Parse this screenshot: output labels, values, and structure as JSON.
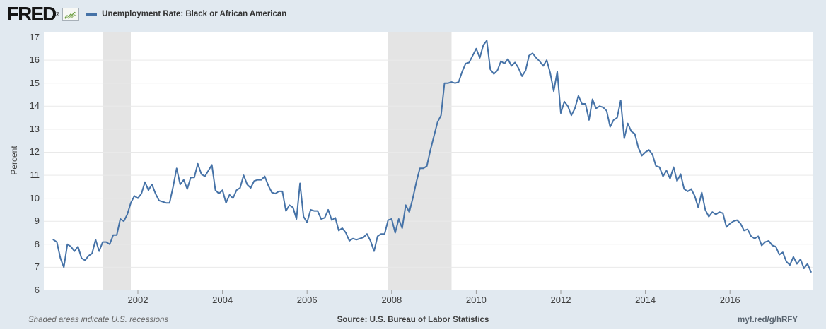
{
  "header": {
    "logo": "FRED",
    "registered_mark": "®",
    "legend_label": "Unemployment Rate: Black or African American"
  },
  "colors": {
    "background": "#e1e9f0",
    "plot_background": "#ffffff",
    "line": "#4572a7",
    "recession_band": "#e4e4e4",
    "gridline": "#e9e9e9",
    "axis": "#999999",
    "icon_green": "#6c9e3f"
  },
  "footer": {
    "note": "Shaded areas indicate U.S. recessions",
    "source": "Source: U.S. Bureau of Labor Statistics",
    "link": "myf.red/g/hRFY"
  },
  "chart_data": {
    "type": "line",
    "title": "Unemployment Rate: Black or African American",
    "ylabel": "Percent",
    "xlabel": "",
    "ylim": [
      6,
      17
    ],
    "y_ticks": [
      6,
      7,
      8,
      9,
      10,
      11,
      12,
      13,
      14,
      15,
      16,
      17
    ],
    "x_ticks": [
      2002,
      2004,
      2006,
      2008,
      2010,
      2012,
      2014,
      2016
    ],
    "grid": "horizontal-only",
    "legend_position": "top-left-header",
    "frequency": "monthly",
    "recessions": [
      {
        "start": 2001.167,
        "end": 2001.833
      },
      {
        "start": 2007.917,
        "end": 2009.417
      }
    ],
    "series": [
      {
        "name": "Unemployment Rate: Black or African American",
        "color": "#4572a7",
        "monthly": [
          {
            "year": 2000,
            "values": [
              8.2,
              8.1,
              7.4,
              7.0,
              8.0,
              7.9,
              7.7,
              7.9,
              7.4,
              7.3,
              7.5,
              7.6
            ]
          },
          {
            "year": 2001,
            "values": [
              8.2,
              7.7,
              8.1,
              8.1,
              8.0,
              8.4,
              8.4,
              9.1,
              9.0,
              9.3,
              9.8,
              10.1
            ]
          },
          {
            "year": 2002,
            "values": [
              10.0,
              10.2,
              10.7,
              10.35,
              10.6,
              10.2,
              9.9,
              9.85,
              9.8,
              9.8,
              10.5,
              11.3
            ]
          },
          {
            "year": 2003,
            "values": [
              10.6,
              10.8,
              10.4,
              10.9,
              10.9,
              11.5,
              11.05,
              10.95,
              11.2,
              11.45,
              10.35,
              10.2
            ]
          },
          {
            "year": 2004,
            "values": [
              10.35,
              9.8,
              10.15,
              10.0,
              10.35,
              10.45,
              11.0,
              10.6,
              10.45,
              10.75,
              10.8,
              10.8
            ]
          },
          {
            "year": 2005,
            "values": [
              10.95,
              10.55,
              10.25,
              10.2,
              10.3,
              10.3,
              9.45,
              9.7,
              9.6,
              9.1,
              10.65,
              9.2
            ]
          },
          {
            "year": 2006,
            "values": [
              8.95,
              9.5,
              9.45,
              9.45,
              9.1,
              9.15,
              9.5,
              9.05,
              9.15,
              8.6,
              8.7,
              8.5
            ]
          },
          {
            "year": 2007,
            "values": [
              8.15,
              8.25,
              8.2,
              8.25,
              8.3,
              8.45,
              8.15,
              7.7,
              8.35,
              8.45,
              8.45,
              9.05
            ]
          },
          {
            "year": 2008,
            "values": [
              9.1,
              8.5,
              9.1,
              8.7,
              9.7,
              9.4,
              10.0,
              10.7,
              11.3,
              11.3,
              11.4,
              12.1
            ]
          },
          {
            "year": 2009,
            "values": [
              12.7,
              13.3,
              13.6,
              15.0,
              15.0,
              15.05,
              15.0,
              15.05,
              15.5,
              15.85,
              15.9,
              16.2
            ]
          },
          {
            "year": 2010,
            "values": [
              16.5,
              16.1,
              16.65,
              16.85,
              15.6,
              15.4,
              15.55,
              15.95,
              15.85,
              16.05,
              15.75,
              15.9
            ]
          },
          {
            "year": 2011,
            "values": [
              15.65,
              15.3,
              15.55,
              16.2,
              16.3,
              16.1,
              15.95,
              15.75,
              16.0,
              15.45,
              14.65,
              15.5
            ]
          },
          {
            "year": 2012,
            "values": [
              13.7,
              14.2,
              14.0,
              13.6,
              13.9,
              14.45,
              14.1,
              14.1,
              13.4,
              14.3,
              13.9,
              14.0
            ]
          },
          {
            "year": 2013,
            "values": [
              13.95,
              13.8,
              13.1,
              13.4,
              13.5,
              14.25,
              12.6,
              13.25,
              12.9,
              12.8,
              12.2,
              11.85
            ]
          },
          {
            "year": 2014,
            "values": [
              12.0,
              12.1,
              11.9,
              11.4,
              11.35,
              10.95,
              11.2,
              10.85,
              11.35,
              10.75,
              11.05,
              10.4
            ]
          },
          {
            "year": 2015,
            "values": [
              10.3,
              10.4,
              10.1,
              9.6,
              10.25,
              9.5,
              9.2,
              9.4,
              9.3,
              9.4,
              9.35,
              8.75
            ]
          },
          {
            "year": 2016,
            "values": [
              8.9,
              9.0,
              9.05,
              8.9,
              8.6,
              8.65,
              8.35,
              8.25,
              8.35,
              7.95,
              8.1,
              8.15
            ]
          },
          {
            "year": 2017,
            "values": [
              7.95,
              7.9,
              7.55,
              7.65,
              7.25,
              7.1,
              7.45,
              7.15,
              7.35,
              6.95,
              7.15,
              6.8
            ]
          }
        ]
      }
    ]
  }
}
